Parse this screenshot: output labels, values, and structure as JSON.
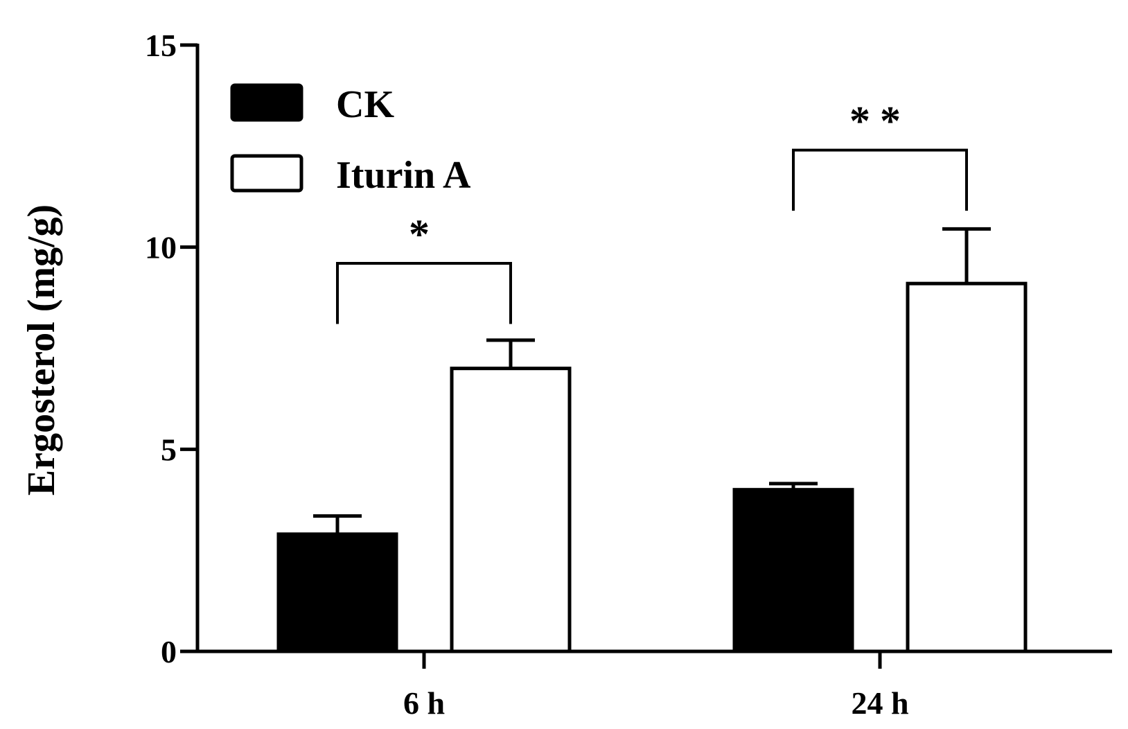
{
  "chart_data": {
    "type": "bar",
    "categories": [
      "6 h",
      "24 h"
    ],
    "series": [
      {
        "name": "CK",
        "values": [
          2.9,
          4.0
        ],
        "errors": [
          0.45,
          0.15
        ],
        "color": "#000000",
        "fill": "solid"
      },
      {
        "name": "Iturin A",
        "values": [
          7.0,
          9.1
        ],
        "errors": [
          0.7,
          1.35
        ],
        "color": "#000000",
        "fill": "open"
      }
    ],
    "title": "",
    "xlabel": "",
    "ylabel": "Ergosterol (mg/g)",
    "ylim": [
      0,
      15
    ],
    "yticks": [
      "0",
      "5",
      "10",
      "15"
    ],
    "grid": false,
    "legend_position": "top-left",
    "annotations": [
      {
        "label": "*",
        "category": "6 h",
        "bracket_bottom": 8.1,
        "bracket_top": 9.6
      },
      {
        "label": "**",
        "category": "24 h",
        "bracket_bottom": 10.9,
        "bracket_top": 12.4
      }
    ]
  }
}
